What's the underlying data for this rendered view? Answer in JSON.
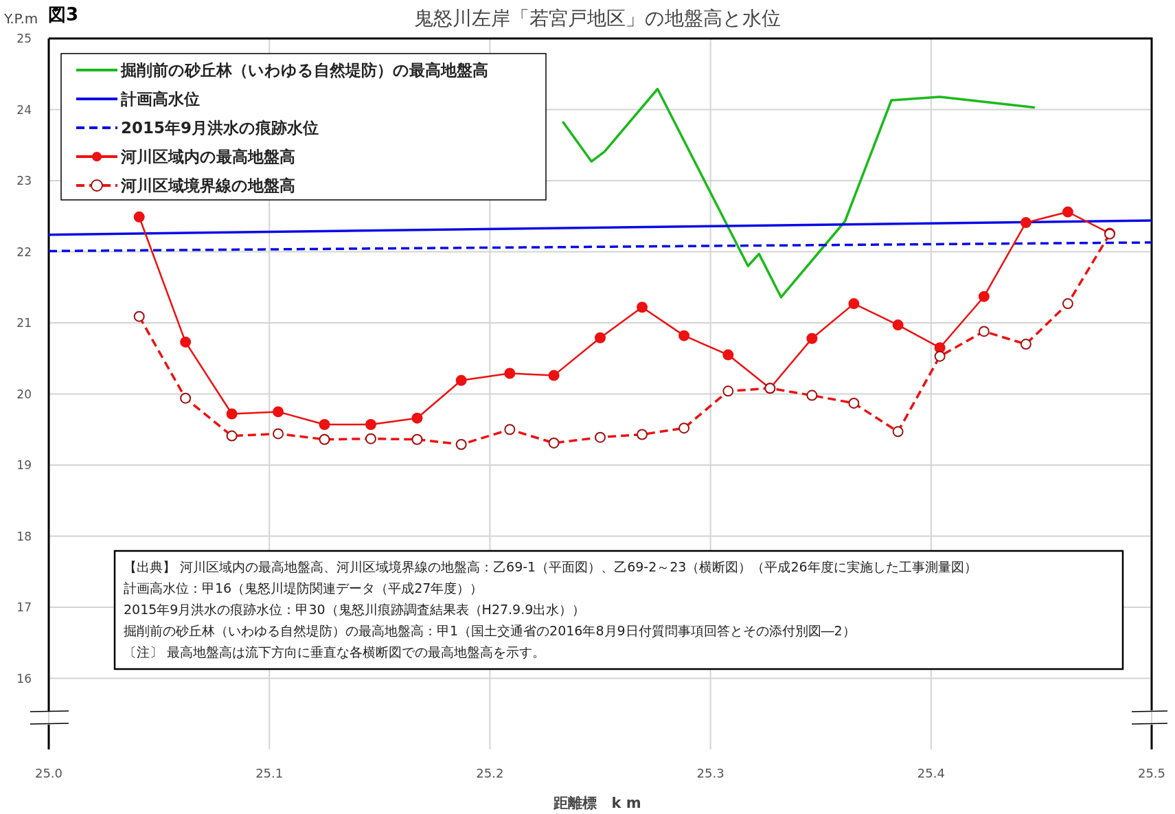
{
  "chart_data": {
    "type": "line",
    "title": "鬼怒川左岸「若宮戸地区」の地盤高と水位",
    "ylabel": "Y.P.m",
    "xlabel": "距離標　k m",
    "xlim": [
      25.0,
      25.5
    ],
    "xticks": [
      {
        "value": 25.0,
        "label": "25.0"
      },
      {
        "value": 25.1,
        "label": "25.1"
      },
      {
        "value": 25.2,
        "label": "25.2"
      },
      {
        "value": 25.3,
        "label": "25.3"
      },
      {
        "value": 25.4,
        "label": "25.4"
      },
      {
        "value": 25.5,
        "label": "25.5"
      }
    ],
    "ylim": [
      15,
      25
    ],
    "yticks": [
      16,
      17,
      18,
      19,
      20,
      21,
      22,
      23,
      24,
      25
    ],
    "grid": true,
    "legend": "top left",
    "series": [
      {
        "name": "掘削前の砂丘林（いわゆる自然堤防）の最高地盤高",
        "color": "#1cb91c",
        "line_style": "solid",
        "marker": "none",
        "x": [
          25.233,
          25.246,
          25.252,
          25.276,
          25.317,
          25.322,
          25.332,
          25.361,
          25.382,
          25.404,
          25.447
        ],
        "values": [
          23.83,
          23.27,
          23.41,
          24.29,
          21.8,
          21.97,
          21.36,
          22.43,
          24.13,
          24.18,
          24.03
        ]
      },
      {
        "name": "計画高水位",
        "color": "#0a0ae6",
        "line_style": "solid",
        "marker": "none",
        "x": [
          25.0,
          25.5
        ],
        "values": [
          22.24,
          22.44
        ]
      },
      {
        "name": "2015年9月洪水の痕跡水位",
        "color": "#0a0ae6",
        "line_style": "dashed",
        "marker": "none",
        "x": [
          25.0,
          25.5
        ],
        "values": [
          22.01,
          22.13
        ]
      },
      {
        "name": "河川区域内の最高地盤高",
        "color": "#ee1111",
        "line_style": "solid",
        "marker": "circle",
        "x": [
          25.041,
          25.062,
          25.083,
          25.104,
          25.125,
          25.146,
          25.167,
          25.187,
          25.209,
          25.229,
          25.25,
          25.269,
          25.288,
          25.308,
          25.327,
          25.346,
          25.365,
          25.385,
          25.404,
          25.424,
          25.443,
          25.462,
          25.481
        ],
        "values": [
          22.49,
          20.73,
          19.72,
          19.75,
          19.57,
          19.57,
          19.66,
          20.19,
          20.29,
          20.26,
          20.79,
          21.22,
          20.82,
          20.55,
          20.08,
          20.78,
          21.27,
          20.97,
          20.65,
          21.37,
          22.41,
          22.56,
          22.26
        ]
      },
      {
        "name": "河川区域境界線の地盤高",
        "color": "#ee1111",
        "line_style": "dashed",
        "marker": "open_circle",
        "x": [
          25.041,
          25.062,
          25.083,
          25.104,
          25.125,
          25.146,
          25.167,
          25.187,
          25.209,
          25.229,
          25.25,
          25.269,
          25.288,
          25.308,
          25.327,
          25.346,
          25.365,
          25.385,
          25.404,
          25.424,
          25.443,
          25.462,
          25.481
        ],
        "values": [
          21.09,
          19.94,
          19.41,
          19.44,
          19.36,
          19.37,
          19.36,
          19.29,
          19.5,
          19.31,
          19.39,
          19.43,
          19.52,
          20.04,
          20.08,
          19.98,
          19.87,
          19.47,
          20.53,
          20.88,
          20.7,
          21.27,
          22.25
        ]
      }
    ],
    "annotations": [
      "図3",
      "【出典】 河川区域内の最高地盤高、河川区域境界線の地盤高：乙69-1（平面図）、乙69-2～23（横断図）（平成26年度に実施した工事測量図）",
      "計画高水位：甲16（鬼怒川堤防関連データ（平成27年度））",
      "2015年9月洪水の痕跡水位：甲30（鬼怒川痕跡調査結果表（H27.9.9出水））",
      "掘削前の砂丘林（いわゆる自然堤防）の最高地盤高：甲1（国土交通省の2016年8月9日付質問事項回答とその添付別図―2）",
      "〔注〕 最高地盤高は流下方向に垂直な各横断図での最高地盤高を示す。"
    ]
  }
}
